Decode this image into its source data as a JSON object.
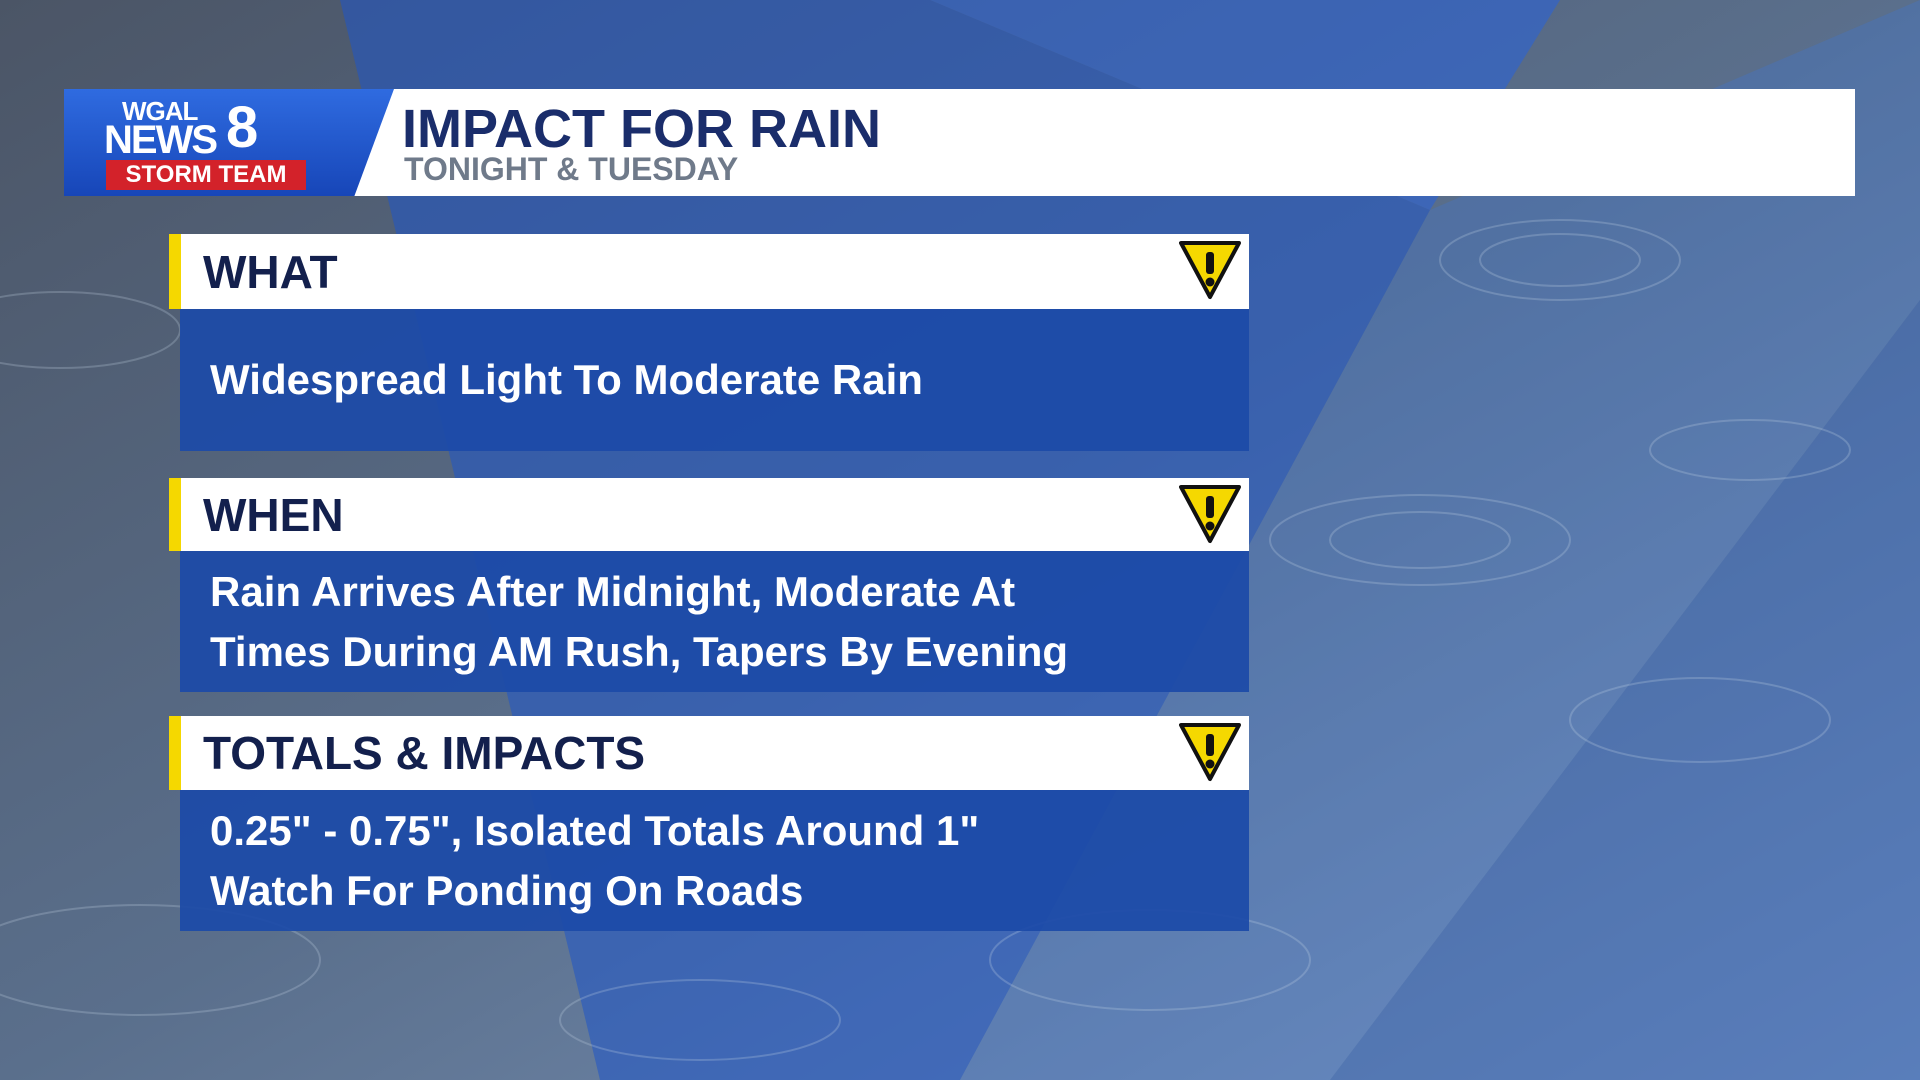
{
  "logo": {
    "station": "WGAL",
    "brand": "NEWS",
    "channel": "8",
    "team": "STORM TEAM"
  },
  "header": {
    "title": "IMPACT FOR RAIN",
    "subtitle": "TONIGHT & TUESDAY"
  },
  "sections": [
    {
      "heading": "WHAT",
      "lines": [
        "Widespread Light To Moderate Rain"
      ]
    },
    {
      "heading": "WHEN",
      "lines": [
        "Rain Arrives After Midnight, Moderate At",
        "Times During AM Rush, Tapers By Evening"
      ]
    },
    {
      "heading": "TOTALS & IMPACTS",
      "lines": [
        "0.25\" - 0.75\", Isolated Totals Around 1\"",
        "Watch For Ponding On Roads"
      ]
    }
  ]
}
